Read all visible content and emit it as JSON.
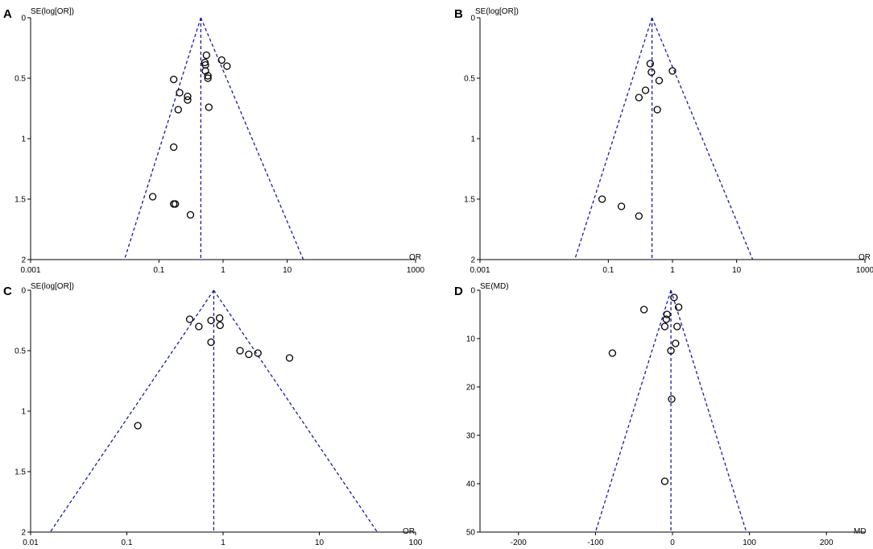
{
  "colors": {
    "funnel": "#1a1aa8",
    "axis": "#000000",
    "point": "#000000"
  },
  "chart_data": [
    {
      "type": "scatter",
      "panel": "A",
      "ylabel": "SE(log[OR])",
      "xlabel": "OR",
      "xscale": "log",
      "xlim": [
        0.001,
        1000
      ],
      "ylim": [
        0,
        2
      ],
      "y_inverted": true,
      "xticks": [
        "0.001",
        "0.1",
        "1",
        "10",
        "1000"
      ],
      "xtick_values": [
        0.001,
        0.1,
        1,
        10,
        1000
      ],
      "yticks": [
        "0",
        "0.5",
        "1",
        "1.5",
        "2"
      ],
      "ytick_values": [
        0,
        0.5,
        1,
        1.5,
        2
      ],
      "pooled": 0.45,
      "funnel_bottom": [
        0.029,
        17.8
      ],
      "x": [
        0.55,
        0.95,
        1.15,
        0.52,
        0.53,
        0.53,
        0.58,
        0.58,
        0.17,
        0.21,
        0.28,
        0.28,
        0.2,
        0.6,
        0.17,
        0.08,
        0.17,
        0.18,
        0.31
      ],
      "y": [
        0.31,
        0.35,
        0.4,
        0.37,
        0.39,
        0.44,
        0.48,
        0.5,
        0.51,
        0.62,
        0.65,
        0.68,
        0.76,
        0.74,
        1.07,
        1.48,
        1.54,
        1.54,
        1.63
      ]
    },
    {
      "type": "scatter",
      "panel": "B",
      "ylabel": "SE(log[OR])",
      "xlabel": "OR",
      "xscale": "log",
      "xlim": [
        0.001,
        1000
      ],
      "ylim": [
        0,
        2
      ],
      "y_inverted": true,
      "xticks": [
        "0.001",
        "0.1",
        "1",
        "10",
        "1000"
      ],
      "xtick_values": [
        0.001,
        0.1,
        1,
        10,
        1000
      ],
      "yticks": [
        "0",
        "0.5",
        "1",
        "1.5",
        "2"
      ],
      "ytick_values": [
        0,
        0.5,
        1,
        1.5,
        2
      ],
      "pooled": 0.48,
      "funnel_bottom": [
        0.03,
        17.8
      ],
      "x": [
        0.45,
        0.47,
        1.0,
        0.62,
        0.38,
        0.3,
        0.58,
        0.08,
        0.16,
        0.3
      ],
      "y": [
        0.38,
        0.45,
        0.44,
        0.52,
        0.6,
        0.66,
        0.76,
        1.5,
        1.56,
        1.64
      ]
    },
    {
      "type": "scatter",
      "panel": "C",
      "ylabel": "SE(log[OR])",
      "xlabel": "OR",
      "xscale": "log",
      "xlim": [
        0.01,
        100
      ],
      "ylim": [
        0,
        2
      ],
      "y_inverted": true,
      "xticks": [
        "0.01",
        "0.1",
        "1",
        "10",
        "100"
      ],
      "xtick_values": [
        0.01,
        0.1,
        1,
        10,
        100
      ],
      "yticks": [
        "0",
        "0.5",
        "1",
        "1.5",
        "2"
      ],
      "ytick_values": [
        0,
        0.5,
        1,
        1.5,
        2
      ],
      "pooled": 0.8,
      "funnel_bottom": [
        0.016,
        40
      ],
      "x": [
        0.45,
        0.75,
        0.92,
        0.56,
        0.93,
        0.75,
        1.5,
        1.85,
        2.3,
        4.9,
        0.13
      ],
      "y": [
        0.24,
        0.25,
        0.23,
        0.3,
        0.29,
        0.43,
        0.5,
        0.53,
        0.52,
        0.56,
        1.12
      ]
    },
    {
      "type": "scatter",
      "panel": "D",
      "ylabel": "SE(MD)",
      "xlabel": "MD",
      "xscale": "linear",
      "xlim": [
        -250,
        250
      ],
      "ylim": [
        0,
        50
      ],
      "y_inverted": true,
      "xticks": [
        "-200",
        "-100",
        "0",
        "100",
        "200"
      ],
      "xtick_values": [
        -200,
        -100,
        0,
        100,
        200
      ],
      "yticks": [
        "0",
        "10",
        "20",
        "30",
        "40",
        "50"
      ],
      "ytick_values": [
        0,
        10,
        20,
        30,
        40,
        50
      ],
      "pooled": -2,
      "funnel_bottom": [
        -100,
        96
      ],
      "x": [
        2,
        8,
        -37,
        -7,
        -8,
        -10,
        6,
        -2,
        4,
        -78,
        -1,
        -10
      ],
      "y": [
        1.5,
        3.5,
        4,
        5,
        6,
        7.5,
        7.5,
        12.5,
        11,
        13,
        22.5,
        39.5
      ]
    }
  ]
}
